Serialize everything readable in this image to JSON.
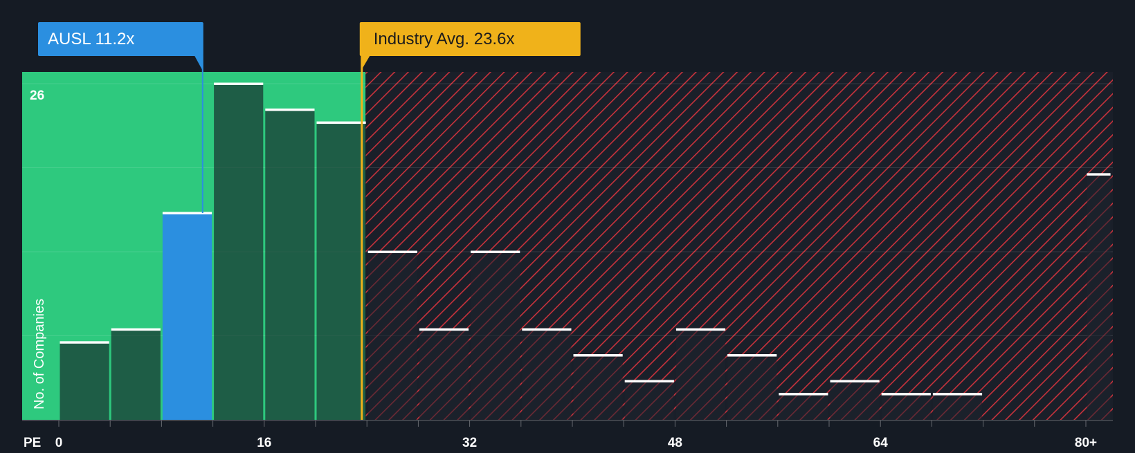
{
  "chart_data": {
    "type": "bar",
    "x_axis_label": "PE",
    "y_axis_label": "No. of Companies",
    "y_max_label": "26",
    "ylim": [
      0,
      26
    ],
    "x_ticks": [
      {
        "value": 0,
        "label": "0"
      },
      {
        "value": 16,
        "label": "16"
      },
      {
        "value": 32,
        "label": "32"
      },
      {
        "value": 48,
        "label": "48"
      },
      {
        "value": 64,
        "label": "64"
      },
      {
        "value": 80,
        "label": "80+"
      }
    ],
    "bin_width": 4,
    "bins": [
      {
        "start": 0,
        "end": 4,
        "count": 6
      },
      {
        "start": 4,
        "end": 8,
        "count": 7
      },
      {
        "start": 8,
        "end": 12,
        "count": 16,
        "highlight": true
      },
      {
        "start": 12,
        "end": 16,
        "count": 26
      },
      {
        "start": 16,
        "end": 20,
        "count": 24
      },
      {
        "start": 20,
        "end": 24,
        "count": 23
      },
      {
        "start": 24,
        "end": 28,
        "count": 13
      },
      {
        "start": 28,
        "end": 32,
        "count": 7
      },
      {
        "start": 32,
        "end": 36,
        "count": 13
      },
      {
        "start": 36,
        "end": 40,
        "count": 7
      },
      {
        "start": 40,
        "end": 44,
        "count": 5
      },
      {
        "start": 44,
        "end": 48,
        "count": 3
      },
      {
        "start": 48,
        "end": 52,
        "count": 7
      },
      {
        "start": 52,
        "end": 56,
        "count": 5
      },
      {
        "start": 56,
        "end": 60,
        "count": 2
      },
      {
        "start": 60,
        "end": 64,
        "count": 3
      },
      {
        "start": 64,
        "end": 68,
        "count": 2
      },
      {
        "start": 68,
        "end": 72,
        "count": 2
      },
      {
        "start": 80,
        "end": 82,
        "count": 19
      }
    ],
    "company": {
      "label": "AUSL 11.2x",
      "value": 11.2
    },
    "industry_avg": {
      "label": "Industry Avg. 23.6x",
      "value": 23.6
    },
    "colors": {
      "background": "#151b24",
      "undervalued_zone": "#2ec97e",
      "overvalued_hatch": "#c8323c",
      "company_bar": "#2b8fe0",
      "company_callout": "#2b8fe0",
      "industry_callout": "#f0b21a",
      "bar_cap": "#ffffff"
    }
  }
}
